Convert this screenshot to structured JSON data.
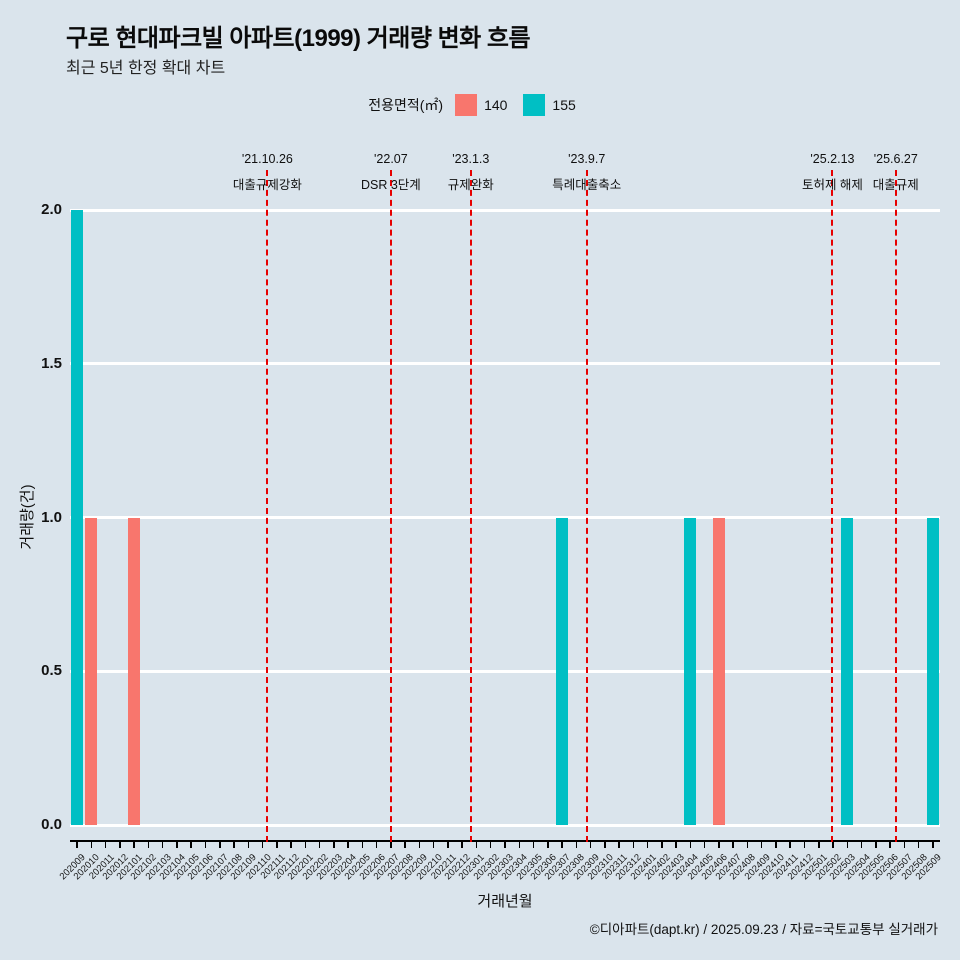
{
  "title": "구로 현대파크빌 아파트(1999) 거래량 변화 흐름",
  "subtitle": "최근 5년 한정 확대 차트",
  "footer": "©디아파트(dapt.kr) / 2025.09.23 / 자료=국토교통부 실거래가",
  "legend": {
    "label": "전용면적(㎡)",
    "items": [
      {
        "name": "140",
        "color": "#F8766D"
      },
      {
        "name": "155",
        "color": "#00BFC4"
      }
    ]
  },
  "colors": {
    "background": "#dae4ec",
    "grid": "#ffffff",
    "axis": "#000000",
    "annotation_line": "#e60000"
  },
  "chart_data": {
    "type": "bar",
    "title": "구로 현대파크빌 아파트(1999) 거래량 변화 흐름",
    "xlabel": "거래년월",
    "ylabel": "거래량(건)",
    "ylim": [
      0,
      2.0
    ],
    "yticks": [
      0.0,
      0.5,
      1.0,
      1.5,
      2.0
    ],
    "legend_position": "top-center",
    "grid": "major-horizontal-white",
    "categories": [
      "202009",
      "202010",
      "202011",
      "202012",
      "202101",
      "202102",
      "202103",
      "202104",
      "202105",
      "202106",
      "202107",
      "202108",
      "202109",
      "202110",
      "202111",
      "202112",
      "202201",
      "202202",
      "202203",
      "202204",
      "202205",
      "202206",
      "202207",
      "202208",
      "202209",
      "202210",
      "202211",
      "202212",
      "202301",
      "202302",
      "202303",
      "202304",
      "202305",
      "202306",
      "202307",
      "202308",
      "202309",
      "202310",
      "202311",
      "202312",
      "202401",
      "202402",
      "202403",
      "202404",
      "202405",
      "202406",
      "202407",
      "202408",
      "202409",
      "202410",
      "202411",
      "202412",
      "202501",
      "202502",
      "202503",
      "202504",
      "202505",
      "202506",
      "202507",
      "202508",
      "202509"
    ],
    "series": [
      {
        "name": "140",
        "color": "#F8766D",
        "data": [
          {
            "month": "202010",
            "value": 1
          },
          {
            "month": "202101",
            "value": 1
          },
          {
            "month": "202406",
            "value": 1
          }
        ]
      },
      {
        "name": "155",
        "color": "#00BFC4",
        "data": [
          {
            "month": "202009",
            "value": 2
          },
          {
            "month": "202307",
            "value": 1
          },
          {
            "month": "202404",
            "value": 1
          },
          {
            "month": "202503",
            "value": 1
          },
          {
            "month": "202509",
            "value": 1
          }
        ]
      }
    ],
    "annotations": [
      {
        "date": "'21.10.26",
        "label": "대출규제강화",
        "x_index": 13.84
      },
      {
        "date": "'22.07",
        "label": "DSR 3단계",
        "x_index": 22.5
      },
      {
        "date": "'23.1.3",
        "label": "규제완화",
        "x_index": 28.1
      },
      {
        "date": "'23.9.7",
        "label": "특례대출축소",
        "x_index": 36.23
      },
      {
        "date": "'25.2.13",
        "label": "토허제 해제",
        "x_index": 53.46
      },
      {
        "date": "'25.6.27",
        "label": "대출규제",
        "x_index": 57.9
      }
    ]
  }
}
